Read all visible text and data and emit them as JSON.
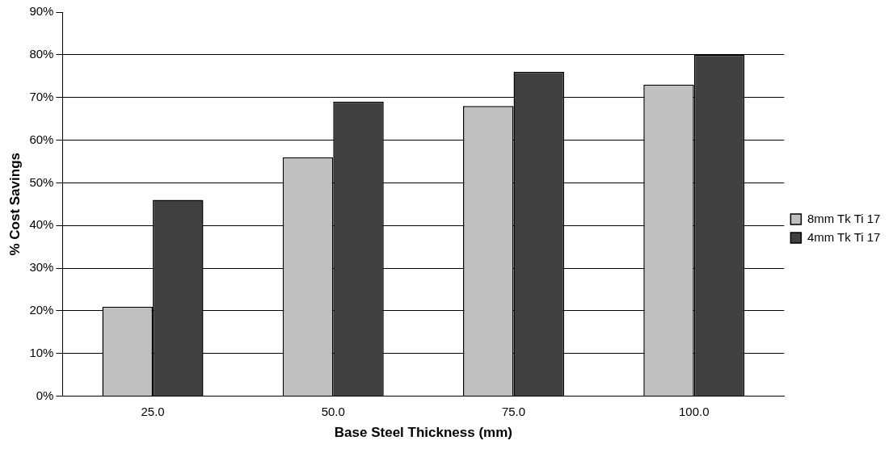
{
  "chart_data": {
    "type": "bar",
    "xlabel": "Base Steel Thickness (mm)",
    "ylabel": "% Cost Savings",
    "categories": [
      "25.0",
      "50.0",
      "75.0",
      "100.0"
    ],
    "series": [
      {
        "name": "8mm Tk Ti 17",
        "color": "#c0c0c0",
        "values": [
          21,
          56,
          68,
          73
        ]
      },
      {
        "name": "4mm Tk Ti 17",
        "color": "#404040",
        "values": [
          46,
          69,
          76,
          80
        ]
      }
    ],
    "ylim": [
      0,
      90
    ],
    "yticks": [
      {
        "value": 0,
        "label": "0%"
      },
      {
        "value": 10,
        "label": "10%"
      },
      {
        "value": 20,
        "label": "20%"
      },
      {
        "value": 30,
        "label": "30%"
      },
      {
        "value": 40,
        "label": "40%"
      },
      {
        "value": 50,
        "label": "50%"
      },
      {
        "value": 60,
        "label": "60%"
      },
      {
        "value": 70,
        "label": "70%"
      },
      {
        "value": 80,
        "label": "80%"
      },
      {
        "value": 90,
        "label": "90%"
      }
    ],
    "grid": "y",
    "legend": "right"
  }
}
